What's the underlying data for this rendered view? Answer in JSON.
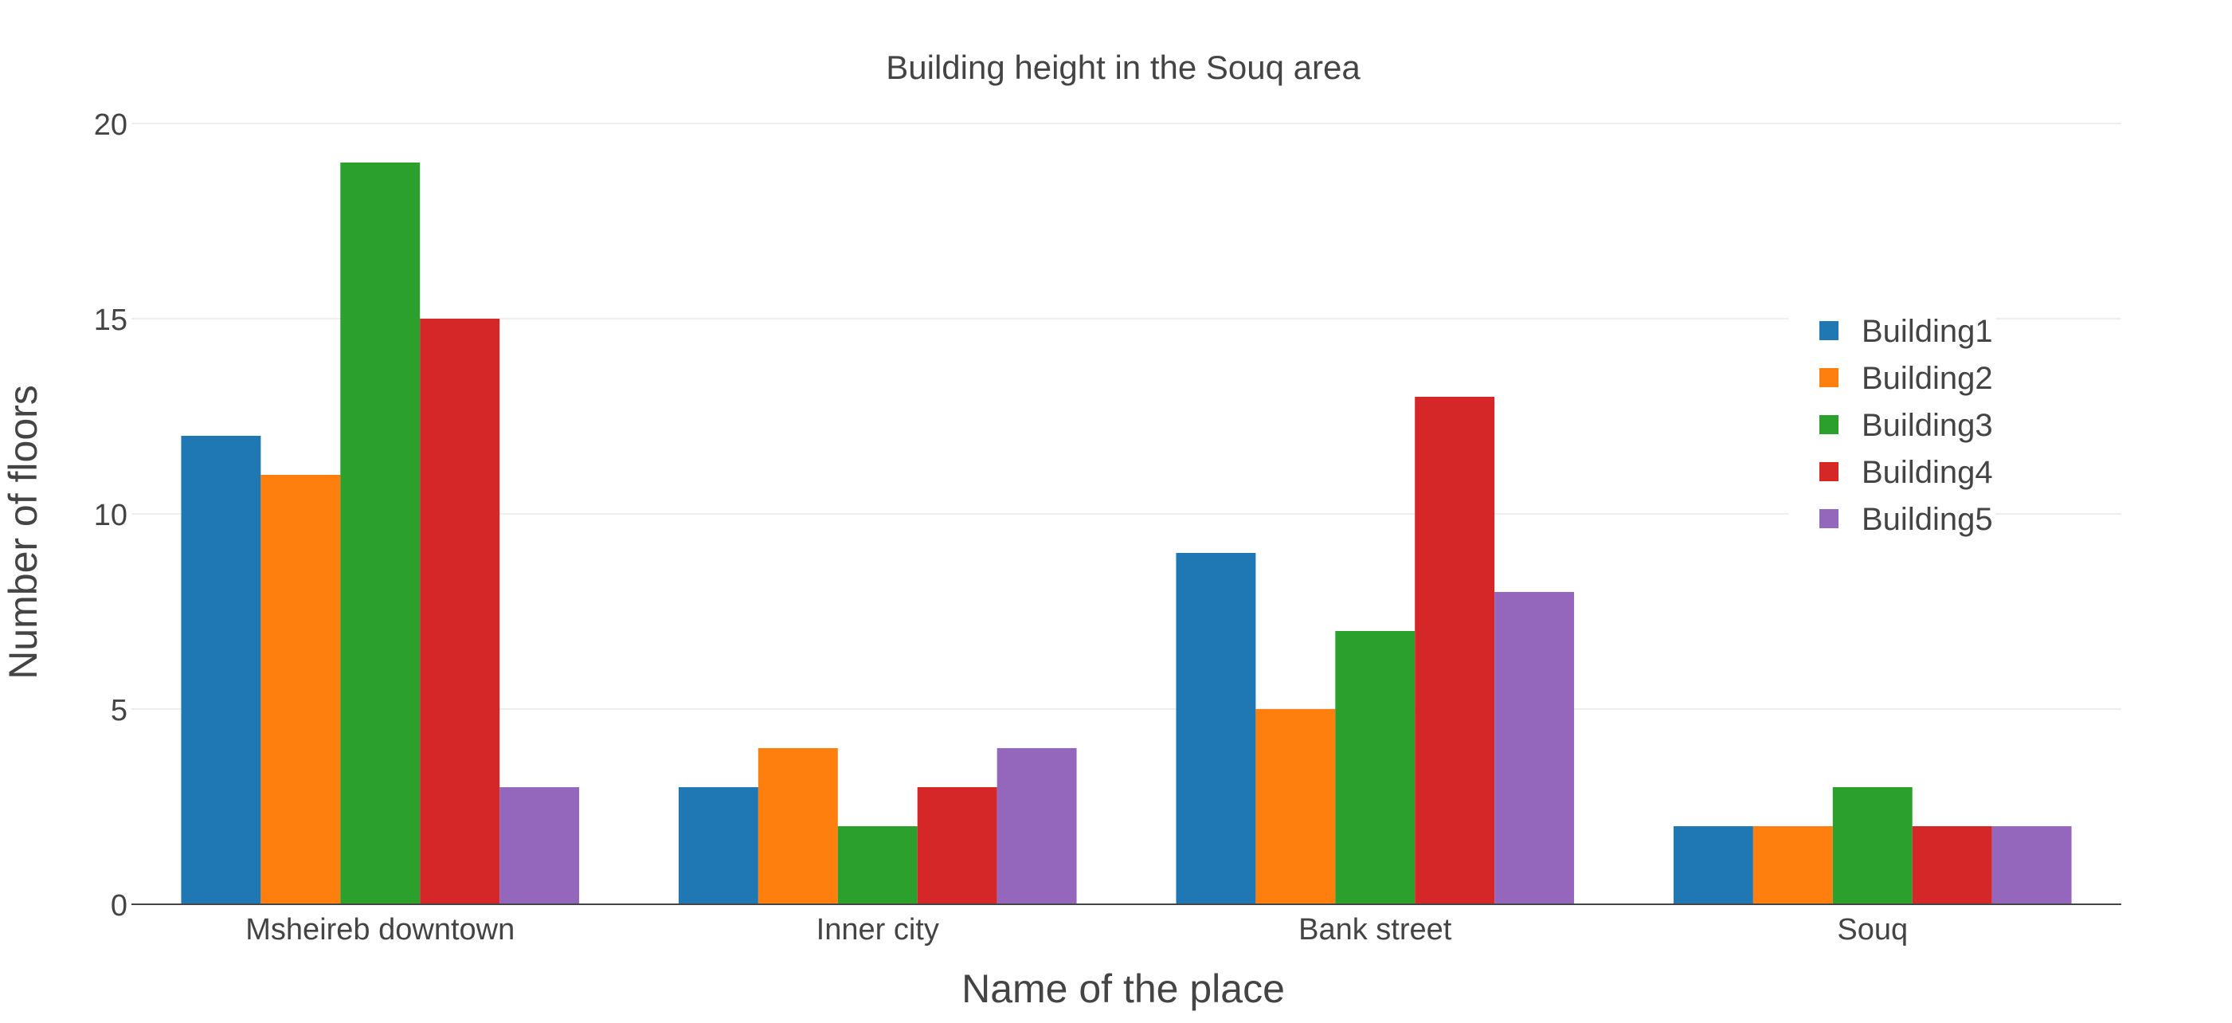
{
  "chart_data": {
    "type": "bar",
    "title": "Building height in the Souq area",
    "xlabel": "Name of the place",
    "ylabel": "Number of floors",
    "categories": [
      "Msheireb downtown",
      "Inner city",
      "Bank street",
      "Souq"
    ],
    "series": [
      {
        "name": "Building1",
        "color": "#1f77b4",
        "values": [
          12,
          3,
          9,
          2
        ]
      },
      {
        "name": "Building2",
        "color": "#ff7f0e",
        "values": [
          11,
          4,
          5,
          2
        ]
      },
      {
        "name": "Building3",
        "color": "#2ca02c",
        "values": [
          19,
          2,
          7,
          3
        ]
      },
      {
        "name": "Building4",
        "color": "#d62728",
        "values": [
          15,
          3,
          13,
          2
        ]
      },
      {
        "name": "Building5",
        "color": "#9467bd",
        "values": [
          3,
          4,
          8,
          2
        ]
      }
    ],
    "ylim": [
      0,
      20
    ],
    "yticks": [
      "0",
      "5",
      "10",
      "15",
      "20"
    ],
    "ytick_values": [
      0,
      5,
      10,
      15,
      20
    ],
    "grid": true,
    "legend_position": "top-right"
  }
}
